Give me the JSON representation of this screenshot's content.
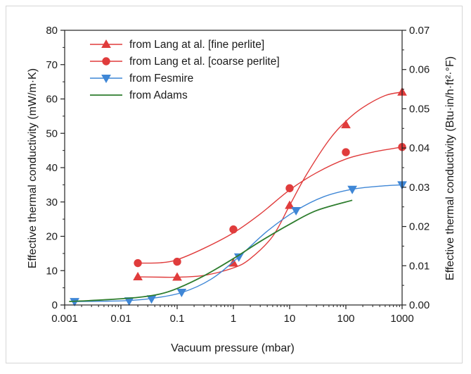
{
  "chart_data": {
    "type": "line",
    "xlabel": "Vacuum pressure (mbar)",
    "ylabel": "Effective thermal conductivity (mW/m·K)",
    "y2label": "Effective thermal conductivity (Btu·in/h·ft²·°F)",
    "xscale": "log",
    "xlim": [
      0.001,
      1000
    ],
    "ylim": [
      0,
      80
    ],
    "y2lim": [
      0.0,
      0.07
    ],
    "x_ticks": [
      0.001,
      0.01,
      0.1,
      1,
      10,
      100,
      1000
    ],
    "x_tick_labels": [
      "0.001",
      "0.01",
      "0.1",
      "1",
      "10",
      "100",
      "1000"
    ],
    "y_ticks": [
      0,
      10,
      20,
      30,
      40,
      50,
      60,
      70,
      80
    ],
    "y_tick_labels": [
      "0",
      "10",
      "20",
      "30",
      "40",
      "50",
      "60",
      "70",
      "80"
    ],
    "y2_ticks": [
      0.0,
      0.01,
      0.02,
      0.03,
      0.04,
      0.05,
      0.06,
      0.07
    ],
    "y2_tick_labels": [
      "0.00",
      "0.01",
      "0.02",
      "0.03",
      "0.04",
      "0.05",
      "0.06",
      "0.07"
    ],
    "grid": false,
    "legend_position": "top-left",
    "series": [
      {
        "name": "from Lang at al. [fine perlite]",
        "marker": "triangle-up",
        "color": "#e03c3c",
        "points": [
          [
            0.02,
            8.2
          ],
          [
            0.1,
            8.1
          ],
          [
            1,
            12.2
          ],
          [
            10,
            29.0
          ],
          [
            100,
            52.5
          ],
          [
            1000,
            62.0
          ]
        ],
        "fit": [
          [
            0.02,
            8.2
          ],
          [
            0.05,
            8.1
          ],
          [
            0.1,
            8.1
          ],
          [
            0.3,
            8.6
          ],
          [
            1,
            10.8
          ],
          [
            2,
            13.5
          ],
          [
            5,
            20.0
          ],
          [
            10,
            29.0
          ],
          [
            20,
            38.0
          ],
          [
            50,
            48.0
          ],
          [
            100,
            53.5
          ],
          [
            200,
            57.5
          ],
          [
            500,
            61.0
          ],
          [
            1000,
            62.0
          ]
        ]
      },
      {
        "name": "from Lang et al. [coarse perlite]",
        "marker": "circle",
        "color": "#e03c3c",
        "points": [
          [
            0.02,
            12.2
          ],
          [
            0.1,
            12.6
          ],
          [
            1,
            22.0
          ],
          [
            10,
            34.0
          ],
          [
            100,
            44.5
          ],
          [
            1000,
            46.0
          ]
        ],
        "fit": [
          [
            0.02,
            12.2
          ],
          [
            0.05,
            12.3
          ],
          [
            0.1,
            13.2
          ],
          [
            0.3,
            16.5
          ],
          [
            1,
            21.0
          ],
          [
            3,
            26.5
          ],
          [
            10,
            33.5
          ],
          [
            30,
            38.5
          ],
          [
            100,
            42.5
          ],
          [
            300,
            44.5
          ],
          [
            1000,
            46.0
          ]
        ]
      },
      {
        "name": "from Fesmire",
        "marker": "triangle-down",
        "color": "#3f87d6",
        "points": [
          [
            0.0015,
            1.0
          ],
          [
            0.014,
            1.2
          ],
          [
            0.035,
            1.8
          ],
          [
            0.12,
            3.7
          ],
          [
            1.25,
            14.0
          ],
          [
            13,
            27.5
          ],
          [
            130,
            33.7
          ],
          [
            1000,
            35.0
          ]
        ],
        "fit": [
          [
            0.0015,
            1.0
          ],
          [
            0.005,
            1.1
          ],
          [
            0.014,
            1.3
          ],
          [
            0.035,
            1.9
          ],
          [
            0.12,
            3.6
          ],
          [
            0.4,
            7.5
          ],
          [
            1.25,
            14.0
          ],
          [
            4,
            21.5
          ],
          [
            13,
            27.5
          ],
          [
            40,
            31.5
          ],
          [
            130,
            33.7
          ],
          [
            400,
            34.6
          ],
          [
            1000,
            35.0
          ]
        ]
      },
      {
        "name": "from Adams",
        "marker": "none",
        "color": "#2e7d2e",
        "fit": [
          [
            0.0012,
            1.0
          ],
          [
            0.005,
            1.5
          ],
          [
            0.02,
            2.2
          ],
          [
            0.05,
            3.2
          ],
          [
            0.1,
            4.8
          ],
          [
            0.3,
            8.5
          ],
          [
            1,
            13.5
          ],
          [
            3,
            18.5
          ],
          [
            10,
            23.5
          ],
          [
            30,
            27.5
          ],
          [
            130,
            30.5
          ]
        ]
      }
    ]
  }
}
